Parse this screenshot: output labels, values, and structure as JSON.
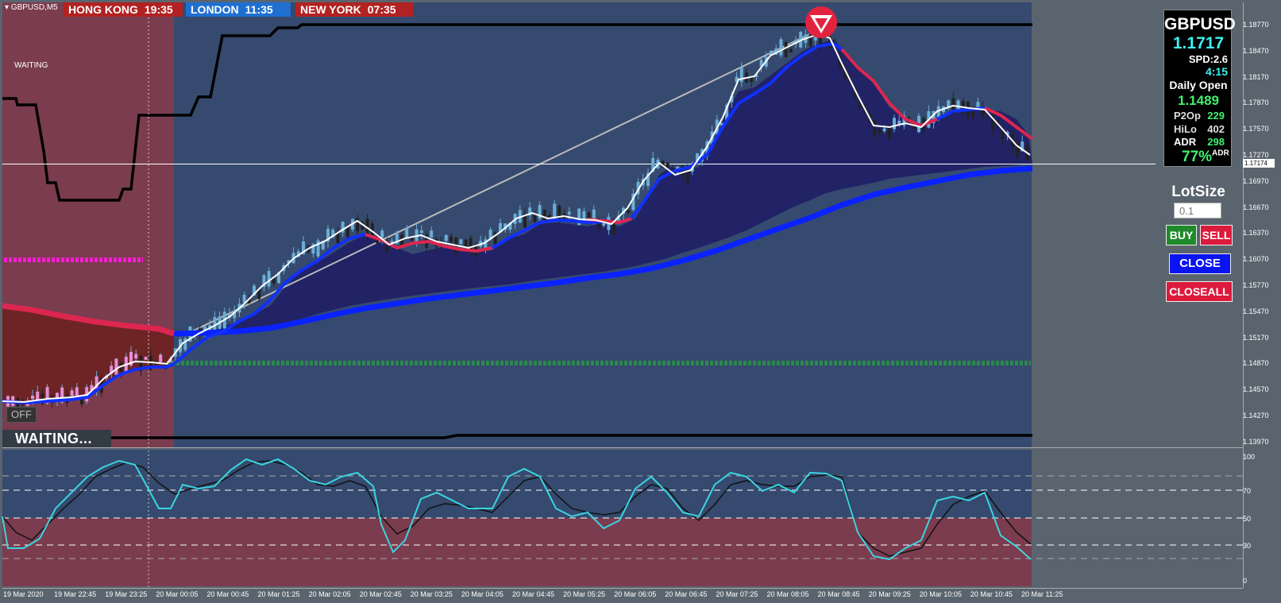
{
  "symbol": {
    "label": "GBPUSD,M5"
  },
  "sessions": [
    {
      "name": "HONG KONG",
      "time": "19:35",
      "color": "#b22222"
    },
    {
      "name": "LONDON",
      "time": "11:35",
      "color": "#1e6fd0"
    },
    {
      "name": "NEW YORK",
      "time": "07:35",
      "color": "#b22222"
    }
  ],
  "status": {
    "small": "WAITING",
    "big": "WAITING...",
    "toggle": "OFF"
  },
  "panel": {
    "symbol": "GBPUSD",
    "price": "1.1717",
    "spread": "SPD:2.6",
    "timer": "4:15",
    "daily_open_label": "Daily Open",
    "daily_open": "1.1489",
    "stats": [
      {
        "key": "P2Op",
        "value": "229"
      },
      {
        "key": "HiLo",
        "value": "402"
      },
      {
        "key": "ADR",
        "value": "298"
      }
    ],
    "adr_pct": "77%",
    "adr_pct_suffix": "ADR"
  },
  "trade": {
    "lot_label": "LotSize",
    "lot_placeholder": "0.1",
    "buy": "BUY",
    "sell": "SELL",
    "close": "CLOSE",
    "closeall": "CLOSEALL"
  },
  "price_axis": [
    "1.18770",
    "1.18470",
    "1.18170",
    "1.17870",
    "1.17570",
    "1.17270",
    "1.16970",
    "1.16670",
    "1.16370",
    "1.16070",
    "1.15770",
    "1.15470",
    "1.15170",
    "1.14870",
    "1.14570",
    "1.14270",
    "1.13970"
  ],
  "current_price_tag": "1.17174",
  "osc_axis": [
    "100",
    "70",
    "50",
    "30",
    "0"
  ],
  "time_axis": [
    "19 Mar 2020",
    "19 Mar 22:45",
    "19 Mar 23:25",
    "20 Mar 00:05",
    "20 Mar 00:45",
    "20 Mar 01:25",
    "20 Mar 02:05",
    "20 Mar 02:45",
    "20 Mar 03:25",
    "20 Mar 04:05",
    "20 Mar 04:45",
    "20 Mar 05:25",
    "20 Mar 06:05",
    "20 Mar 06:45",
    "20 Mar 07:25",
    "20 Mar 08:05",
    "20 Mar 08:45",
    "20 Mar 09:25",
    "20 Mar 10:05",
    "20 Mar 10:45",
    "20 Mar 11:25"
  ],
  "colors": {
    "chart_bg": "#354a6e",
    "asia_zone": "#7a3c4e",
    "panel_bg": "#5a646e",
    "bull": "#6baed6",
    "bear": "#222222",
    "fast_ma": "#ffffff",
    "mid_ma_up": "#1030ff",
    "mid_ma_down": "#dc2650",
    "slow_ma": "#0a22ff",
    "fill": "#222266"
  }
}
